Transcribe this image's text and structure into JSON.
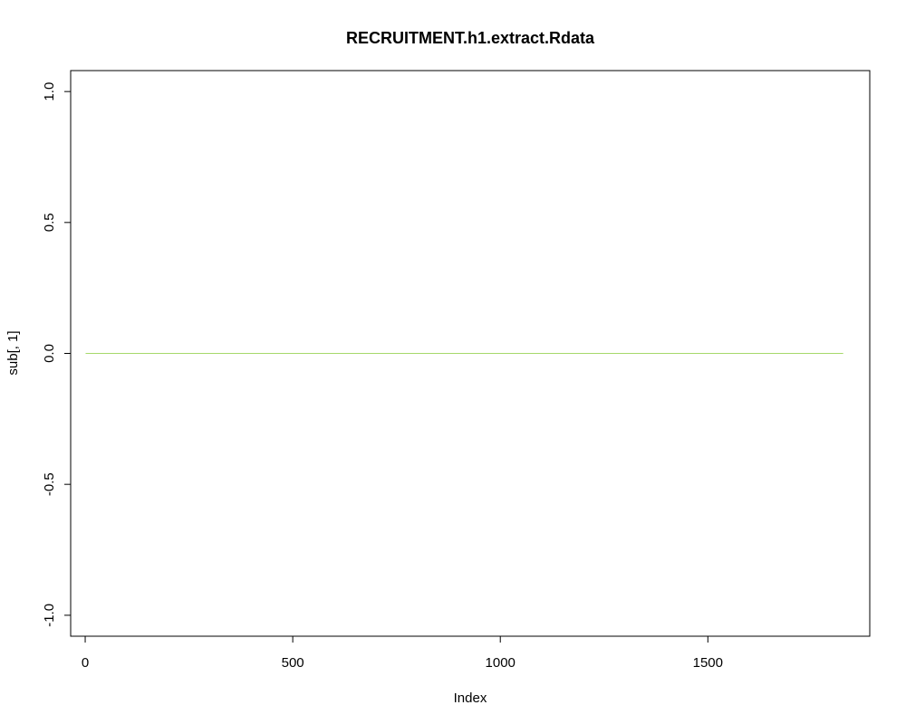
{
  "chart_data": {
    "type": "line",
    "title": "RECRUITMENT.h1.extract.Rdata",
    "xlabel": "Index",
    "ylabel": "sub[, 1]",
    "xlim": [
      -35,
      1890
    ],
    "ylim": [
      -1.08,
      1.08
    ],
    "x_ticks": [
      0,
      500,
      1000,
      1500
    ],
    "x_tick_labels": [
      "0",
      "500",
      "1000",
      "1500"
    ],
    "y_ticks": [
      -1.0,
      -0.5,
      0.0,
      0.5,
      1.0
    ],
    "y_tick_labels": [
      "-1.0",
      "-0.5",
      "0.0",
      "0.5",
      "1.0"
    ],
    "grid": false,
    "series": [
      {
        "color": "#a6d96a",
        "x": [
          1,
          1826
        ],
        "values": [
          0,
          0
        ]
      }
    ]
  }
}
